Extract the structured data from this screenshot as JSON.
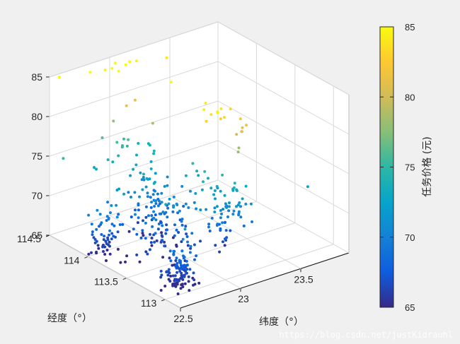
{
  "chart_data": {
    "type": "scatter",
    "projection": "3d",
    "xlabel": "纬度（°）",
    "ylabel": "经度（°）",
    "zlabel": "",
    "colorbar_label": "任务价格 (元)",
    "colormap": "parula",
    "x_ticks": [
      "22.5",
      "23",
      "23.5"
    ],
    "y_ticks": [
      "113",
      "113.5",
      "114",
      "114.5"
    ],
    "z_ticks": [
      "65",
      "70",
      "75",
      "80",
      "85"
    ],
    "colorbar_ticks": [
      "65",
      "70",
      "75",
      "80",
      "85"
    ],
    "xlim": [
      22.5,
      23.9
    ],
    "ylim": [
      112.8,
      114.5
    ],
    "zlim": [
      65,
      85
    ],
    "clim": [
      65,
      85
    ],
    "grid": true,
    "colorbar_position": "right",
    "clusters": [
      {
        "x": 22.72,
        "y": 113.15,
        "z": 66.5,
        "count": 110,
        "spread": [
          0.05,
          0.06,
          1.8
        ]
      },
      {
        "x": 22.9,
        "y": 113.7,
        "z": 67.5,
        "count": 90,
        "spread": [
          0.12,
          0.12,
          2.5
        ]
      },
      {
        "x": 22.6,
        "y": 113.95,
        "z": 67.0,
        "count": 55,
        "spread": [
          0.06,
          0.05,
          1.8
        ]
      },
      {
        "x": 23.05,
        "y": 114.1,
        "z": 68.5,
        "count": 45,
        "spread": [
          0.08,
          0.1,
          2.2
        ]
      },
      {
        "x": 23.2,
        "y": 113.4,
        "z": 69.5,
        "count": 45,
        "spread": [
          0.06,
          0.06,
          2.2
        ]
      },
      {
        "x": 23.0,
        "y": 113.8,
        "z": 71.5,
        "count": 40,
        "spread": [
          0.18,
          0.18,
          1.5
        ]
      },
      {
        "x": 23.3,
        "y": 113.3,
        "z": 72.5,
        "count": 25,
        "spread": [
          0.05,
          0.05,
          1.5
        ]
      },
      {
        "x": 23.0,
        "y": 114.3,
        "z": 74.5,
        "count": 20,
        "spread": [
          0.15,
          0.1,
          1.2
        ]
      },
      {
        "x": 23.3,
        "y": 113.3,
        "z": 79.5,
        "count": 9,
        "spread": [
          0.04,
          0.05,
          2.0
        ]
      },
      {
        "x": 23.12,
        "y": 113.3,
        "z": 83.5,
        "count": 9,
        "spread": [
          0.05,
          0.05,
          1.0
        ]
      },
      {
        "x": 23.0,
        "y": 114.1,
        "z": 80.0,
        "count": 6,
        "spread": [
          0.15,
          0.15,
          3.5
        ]
      },
      {
        "x": 23.0,
        "y": 114.35,
        "z": 84.5,
        "count": 9,
        "spread": [
          0.2,
          0.08,
          0.6
        ]
      }
    ],
    "points": [
      {
        "x": 23.75,
        "y": 113.1,
        "z": 72.5
      },
      {
        "x": 22.55,
        "y": 114.45,
        "z": 85
      },
      {
        "x": 22.55,
        "y": 114.4,
        "z": 75
      }
    ]
  },
  "watermark": "https://blog.csdn.net/justKidrauhl"
}
